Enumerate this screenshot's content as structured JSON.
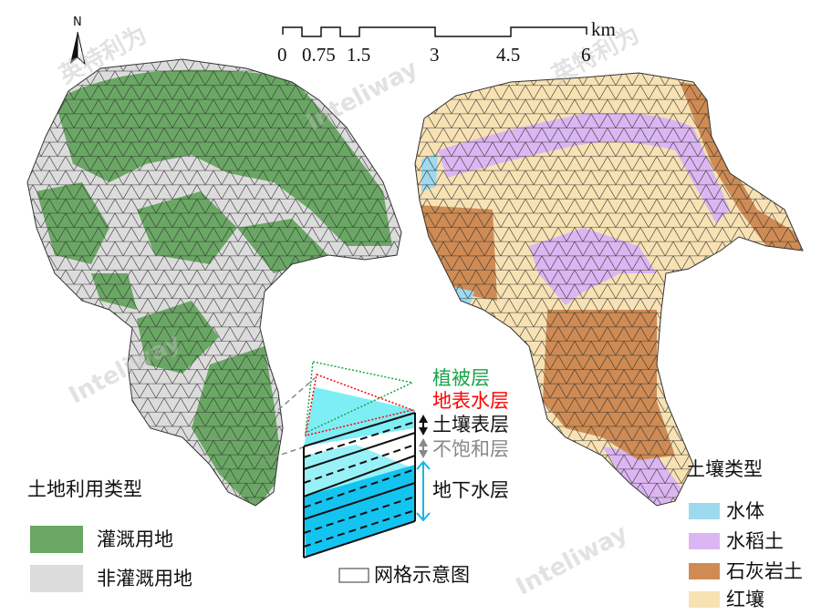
{
  "north_arrow": {
    "label": "N"
  },
  "scale_bar": {
    "ticks": [
      "0",
      "0.75",
      "1.5",
      "3",
      "4.5",
      "6"
    ],
    "unit": "km"
  },
  "land_use_legend": {
    "title": "土地利用类型",
    "items": [
      {
        "label": "灌溉用地",
        "color": "#6aa764"
      },
      {
        "label": "非灌溉用地",
        "color": "#dcdcdc"
      }
    ]
  },
  "soil_legend": {
    "title": "土壤类型",
    "items": [
      {
        "label": "水体",
        "color": "#9ed9ee"
      },
      {
        "label": "水稻土",
        "color": "#dcb6f2"
      },
      {
        "label": "石灰岩土",
        "color": "#cf8b53"
      },
      {
        "label": "红壤",
        "color": "#f8e2b4"
      }
    ]
  },
  "grid_schematic": {
    "caption": "网格示意图",
    "layers": [
      {
        "label": "植被层",
        "color": "#1aa34a"
      },
      {
        "label": "地表水层",
        "color": "#ff0000"
      },
      {
        "label": "土壤表层",
        "color": "#111111"
      },
      {
        "label": "不饱和层",
        "color": "#888888"
      },
      {
        "label": "地下水层",
        "color": "#111111"
      }
    ],
    "fill_colors": {
      "surface": "#7eeef5",
      "groundwater": "#14c4f0",
      "arrow": "#19b4e8"
    }
  },
  "watermarks": [
    "英特利为",
    "Inteliway"
  ]
}
